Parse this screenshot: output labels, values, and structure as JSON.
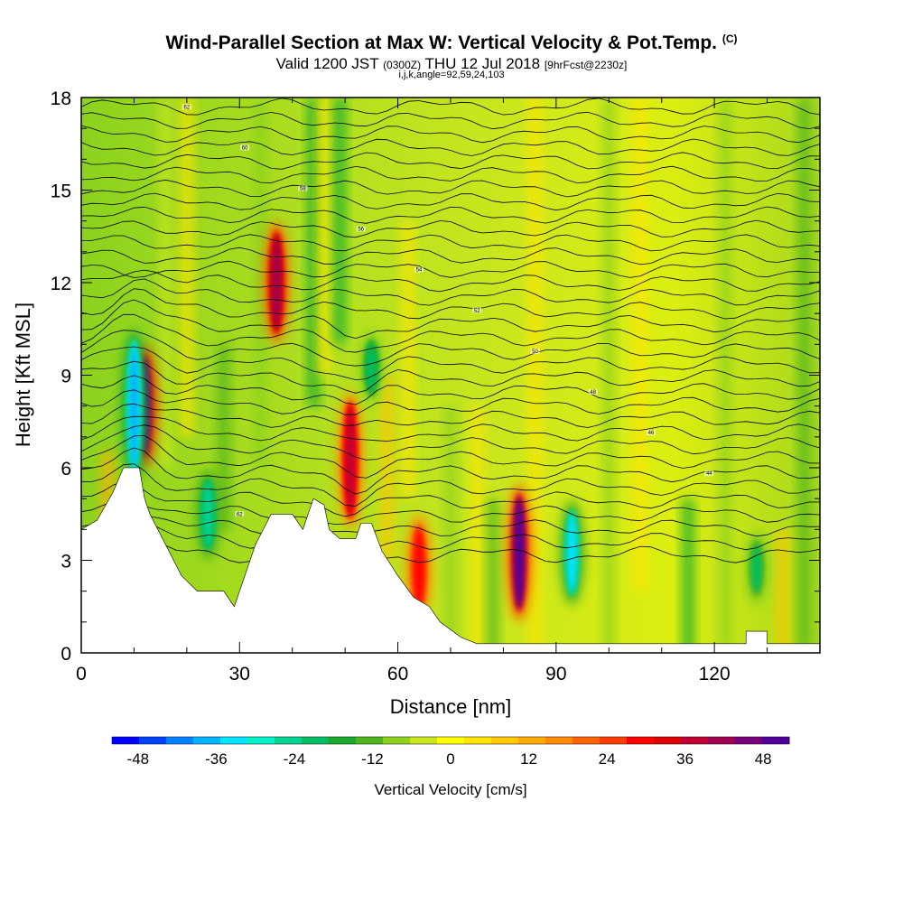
{
  "header": {
    "title": "Wind-Parallel Section at Max W: Vertical Velocity & Pot.Temp.",
    "copyright": "(C)",
    "valid_prefix": "Valid 1200 JST",
    "valid_utc": "(0300Z)",
    "valid_date": "THU 12 Jul 2018",
    "forecast": "[9hrFcst@2230z]",
    "section_params": "i,j,k,angle=92,59,24,103"
  },
  "chart_data": {
    "type": "heatmap",
    "title": "Wind-Parallel Section at Max W: Vertical Velocity & Pot.Temp.",
    "xlabel": "Distance [nm]",
    "ylabel": "Height [Kft MSL]",
    "xlim": [
      0,
      140
    ],
    "ylim": [
      0,
      18
    ],
    "x_ticks": [
      "0",
      "30",
      "60",
      "90",
      "120"
    ],
    "y_ticks": [
      "0",
      "3",
      "6",
      "9",
      "12",
      "15",
      "18"
    ],
    "grid": false,
    "colorbar": {
      "label": "Vertical Velocity [cm/s]",
      "tick_labels": [
        "-48",
        "-36",
        "-24",
        "-12",
        "0",
        "12",
        "24",
        "36",
        "48"
      ],
      "colors": [
        "#0000ff",
        "#0040ff",
        "#0080ff",
        "#00b4ff",
        "#00e4ff",
        "#00f0c8",
        "#00d290",
        "#00be64",
        "#19aa2d",
        "#50b41e",
        "#8cd21e",
        "#c8e61e",
        "#ffff00",
        "#ffe600",
        "#ffc800",
        "#ffaa00",
        "#ff8c00",
        "#ff6400",
        "#ff3c00",
        "#ff0000",
        "#dc0000",
        "#be0032",
        "#a00050",
        "#780078",
        "#50009a"
      ]
    },
    "updrafts": [
      {
        "x": 12,
        "z_bottom": 6.5,
        "z_top": 9.5,
        "w": 48
      },
      {
        "x": 37,
        "z_bottom": 10.5,
        "z_top": 13.5,
        "w": 40
      },
      {
        "x": 51,
        "z_bottom": 4.5,
        "z_top": 8,
        "w": 36
      },
      {
        "x": 83,
        "z_bottom": 1.5,
        "z_top": 5,
        "w": 46
      },
      {
        "x": 64,
        "z_bottom": 1.5,
        "z_top": 4,
        "w": 28
      }
    ],
    "downdrafts": [
      {
        "x": 10,
        "z_bottom": 6,
        "z_top": 10,
        "w": -40
      },
      {
        "x": 24,
        "z_bottom": 3.5,
        "z_top": 5.5,
        "w": -28
      },
      {
        "x": 55,
        "z_bottom": 8.5,
        "z_top": 10,
        "w": -24
      },
      {
        "x": 93,
        "z_bottom": 2,
        "z_top": 4.5,
        "w": -36
      },
      {
        "x": 128,
        "z_bottom": 2,
        "z_top": 3.5,
        "w": -22
      }
    ],
    "terrain_kft": [
      [
        0,
        4.0
      ],
      [
        3,
        4.3
      ],
      [
        6,
        5.2
      ],
      [
        8,
        6.0
      ],
      [
        11,
        6.0
      ],
      [
        12,
        5.0
      ],
      [
        13,
        4.5
      ],
      [
        16,
        3.5
      ],
      [
        19,
        2.5
      ],
      [
        22,
        2.0
      ],
      [
        27,
        2.0
      ],
      [
        29,
        1.5
      ],
      [
        30,
        2.0
      ],
      [
        33,
        3.5
      ],
      [
        36,
        4.5
      ],
      [
        38,
        4.5
      ],
      [
        40,
        4.5
      ],
      [
        42,
        4.0
      ],
      [
        44,
        5.0
      ],
      [
        46,
        4.8
      ],
      [
        47,
        4.0
      ],
      [
        49,
        3.7
      ],
      [
        52,
        3.7
      ],
      [
        53,
        4.2
      ],
      [
        55,
        4.2
      ],
      [
        57,
        3.3
      ],
      [
        60,
        2.5
      ],
      [
        63,
        1.8
      ],
      [
        66,
        1.5
      ],
      [
        68,
        1.0
      ],
      [
        72,
        0.5
      ],
      [
        75,
        0.3
      ],
      [
        80,
        0.3
      ],
      [
        126,
        0.3
      ],
      [
        126,
        0.7
      ],
      [
        130,
        0.7
      ],
      [
        130,
        0.3
      ],
      [
        140,
        0.3
      ]
    ],
    "theta_contour_labels": [
      "62",
      "60",
      "58",
      "56",
      "54",
      "52",
      "50",
      "48",
      "46",
      "44"
    ]
  }
}
